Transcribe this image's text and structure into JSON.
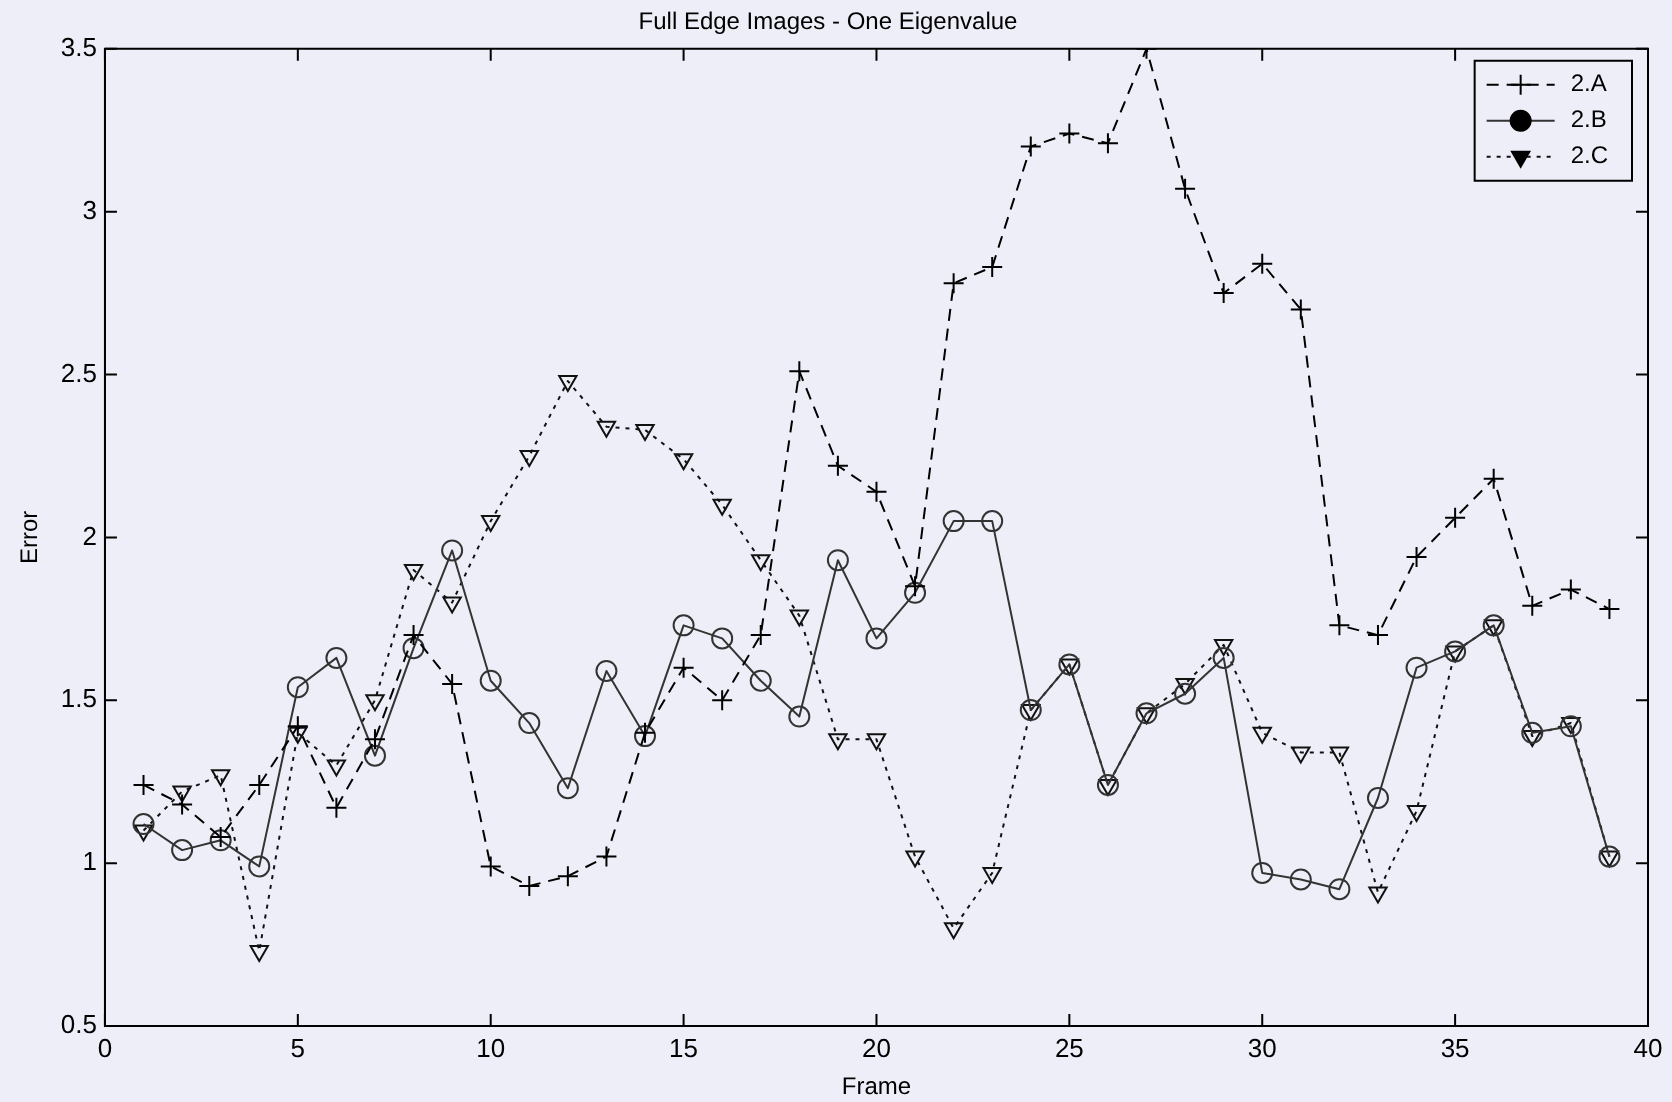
{
  "chart_data": {
    "type": "line",
    "title": "Full Edge Images - One Eigenvalue",
    "xlabel": "Frame",
    "ylabel": "Error",
    "x": [
      1,
      2,
      3,
      4,
      5,
      6,
      7,
      8,
      9,
      10,
      11,
      12,
      13,
      14,
      15,
      16,
      17,
      18,
      19,
      20,
      21,
      22,
      23,
      24,
      25,
      26,
      27,
      28,
      29,
      30,
      31,
      32,
      33,
      34,
      35,
      36,
      37,
      38,
      39
    ],
    "xlim": [
      0,
      40
    ],
    "xticks": [
      0,
      5,
      10,
      15,
      20,
      25,
      30,
      35,
      40
    ],
    "ylim": [
      0.5,
      3.5
    ],
    "yticks": [
      0.5,
      1,
      1.5,
      2,
      2.5,
      3,
      3.5
    ],
    "grid": false,
    "legend": "top right",
    "series": [
      {
        "name": "2.A",
        "color": "#000000",
        "marker": "cross",
        "line_style": "dashed",
        "values": [
          1.24,
          1.18,
          1.08,
          1.24,
          1.42,
          1.17,
          1.38,
          1.7,
          1.55,
          0.99,
          0.93,
          0.96,
          1.02,
          1.4,
          1.6,
          1.5,
          1.7,
          2.51,
          2.22,
          2.14,
          1.85,
          2.78,
          2.83,
          3.2,
          3.24,
          3.21,
          3.5,
          3.07,
          2.75,
          2.84,
          2.7,
          1.73,
          1.7,
          1.94,
          2.06,
          2.18,
          1.79,
          1.84,
          1.78
        ]
      },
      {
        "name": "2.B",
        "color": "#333333",
        "marker": "circle",
        "line_style": "solid",
        "values": [
          1.12,
          1.04,
          1.07,
          0.99,
          1.54,
          1.63,
          1.33,
          1.66,
          1.96,
          1.56,
          1.43,
          1.23,
          1.59,
          1.39,
          1.73,
          1.69,
          1.56,
          1.45,
          1.93,
          1.69,
          1.83,
          2.05,
          2.05,
          1.47,
          1.61,
          1.24,
          1.46,
          1.52,
          1.63,
          0.97,
          0.95,
          0.92,
          1.2,
          1.6,
          1.65,
          1.73,
          1.4,
          1.42,
          1.02
        ]
      },
      {
        "name": "2.C",
        "color": "#111111",
        "marker": "triangle",
        "line_style": "dotted",
        "values": [
          1.1,
          1.22,
          1.27,
          0.73,
          1.4,
          1.3,
          1.5,
          1.9,
          1.8,
          2.05,
          2.25,
          2.48,
          2.34,
          2.33,
          2.24,
          2.1,
          1.93,
          1.76,
          1.38,
          1.38,
          1.02,
          0.8,
          0.97,
          1.47,
          1.61,
          1.24,
          1.46,
          1.55,
          1.67,
          1.4,
          1.34,
          1.34,
          0.91,
          1.16,
          1.65,
          1.73,
          1.39,
          1.43,
          1.02
        ]
      }
    ]
  }
}
